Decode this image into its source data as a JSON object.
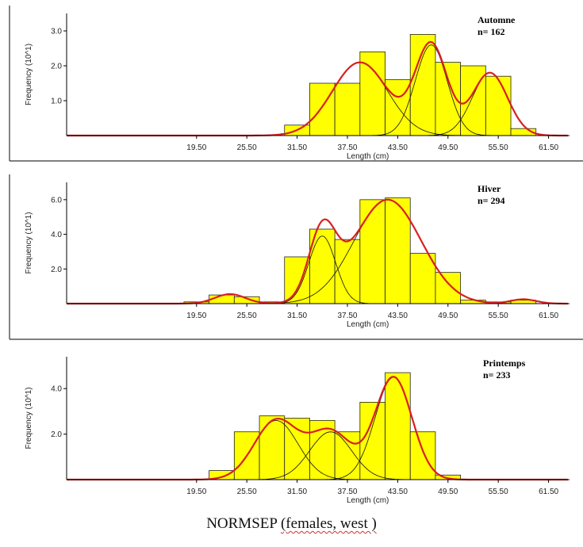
{
  "caption": {
    "prefix": "NORMSEP ",
    "underlined": "(females, west )"
  },
  "chart_data": [
    {
      "type": "bar",
      "season_label": "Automne",
      "n_label": "n= 162",
      "xlabel": "Length (cm)",
      "ylabel": "Frequency (10^1)",
      "x_ticks": [
        "19.50",
        "25.50",
        "31.50",
        "37.50",
        "43.50",
        "49.50",
        "55.50",
        "61.50"
      ],
      "y_ticks": [
        "1.0",
        "2.0",
        "3.0"
      ],
      "xlim": [
        4,
        64
      ],
      "ylim": [
        0,
        3.5
      ],
      "bin_width": 3,
      "bins": [
        {
          "x": 31.5,
          "y": 0.3
        },
        {
          "x": 34.5,
          "y": 1.5
        },
        {
          "x": 37.5,
          "y": 1.5
        },
        {
          "x": 40.5,
          "y": 2.4
        },
        {
          "x": 43.5,
          "y": 1.6
        },
        {
          "x": 46.5,
          "y": 2.9
        },
        {
          "x": 49.5,
          "y": 2.1
        },
        {
          "x": 52.5,
          "y": 2.0
        },
        {
          "x": 55.5,
          "y": 1.7
        },
        {
          "x": 58.5,
          "y": 0.2
        }
      ],
      "components": [
        {
          "mean": 39.0,
          "sd": 3.3,
          "amp": 2.1
        },
        {
          "mean": 47.5,
          "sd": 1.9,
          "amp": 2.6
        },
        {
          "mean": 54.5,
          "sd": 2.1,
          "amp": 1.8
        }
      ],
      "fit_color": "#d82020",
      "bar_color": "#ffff00"
    },
    {
      "type": "bar",
      "season_label": "Hiver",
      "n_label": "n= 294",
      "xlabel": "Length (cm)",
      "ylabel": "Frequency (10^1)",
      "x_ticks": [
        "19.50",
        "25.50",
        "31.50",
        "37.50",
        "43.50",
        "49.50",
        "55.50",
        "61.50"
      ],
      "y_ticks": [
        "2.0",
        "4.0",
        "6.0"
      ],
      "xlim": [
        4,
        64
      ],
      "ylim": [
        0,
        7
      ],
      "bin_width": 3,
      "bins": [
        {
          "x": 19.5,
          "y": 0.1
        },
        {
          "x": 22.5,
          "y": 0.5
        },
        {
          "x": 25.5,
          "y": 0.4
        },
        {
          "x": 28.5,
          "y": 0.1
        },
        {
          "x": 31.5,
          "y": 2.7
        },
        {
          "x": 34.5,
          "y": 4.3
        },
        {
          "x": 37.5,
          "y": 3.7
        },
        {
          "x": 40.5,
          "y": 6.0
        },
        {
          "x": 43.5,
          "y": 6.1
        },
        {
          "x": 46.5,
          "y": 2.9
        },
        {
          "x": 49.5,
          "y": 1.8
        },
        {
          "x": 52.5,
          "y": 0.2
        },
        {
          "x": 55.5,
          "y": 0.1
        },
        {
          "x": 58.5,
          "y": 0.2
        }
      ],
      "components": [
        {
          "mean": 23.5,
          "sd": 1.8,
          "amp": 0.55
        },
        {
          "mean": 34.5,
          "sd": 1.6,
          "amp": 3.9
        },
        {
          "mean": 42.3,
          "sd": 4.0,
          "amp": 6.0
        },
        {
          "mean": 58.5,
          "sd": 1.5,
          "amp": 0.25
        }
      ],
      "fit_color": "#d82020",
      "bar_color": "#ffff00"
    },
    {
      "type": "bar",
      "season_label": "Printemps",
      "n_label": "n= 233",
      "xlabel": "Length (cm)",
      "ylabel": "Frequency (10^1)",
      "x_ticks": [
        "19.50",
        "25.50",
        "31.50",
        "37.50",
        "43.50",
        "49.50",
        "55.50",
        "61.50"
      ],
      "y_ticks": [
        "2.0",
        "4.0"
      ],
      "xlim": [
        4,
        64
      ],
      "ylim": [
        0,
        5.4
      ],
      "bin_width": 3,
      "bins": [
        {
          "x": 22.5,
          "y": 0.4
        },
        {
          "x": 25.5,
          "y": 2.1
        },
        {
          "x": 28.5,
          "y": 2.8
        },
        {
          "x": 31.5,
          "y": 2.7
        },
        {
          "x": 34.5,
          "y": 2.6
        },
        {
          "x": 37.5,
          "y": 2.1
        },
        {
          "x": 40.5,
          "y": 3.4
        },
        {
          "x": 43.5,
          "y": 4.7
        },
        {
          "x": 46.5,
          "y": 2.1
        },
        {
          "x": 49.5,
          "y": 0.2
        }
      ],
      "components": [
        {
          "mean": 29.0,
          "sd": 2.6,
          "amp": 2.6
        },
        {
          "mean": 35.5,
          "sd": 2.5,
          "amp": 2.1
        },
        {
          "mean": 43.0,
          "sd": 2.2,
          "amp": 4.5
        }
      ],
      "fit_color": "#d82020",
      "bar_color": "#ffff00"
    }
  ]
}
